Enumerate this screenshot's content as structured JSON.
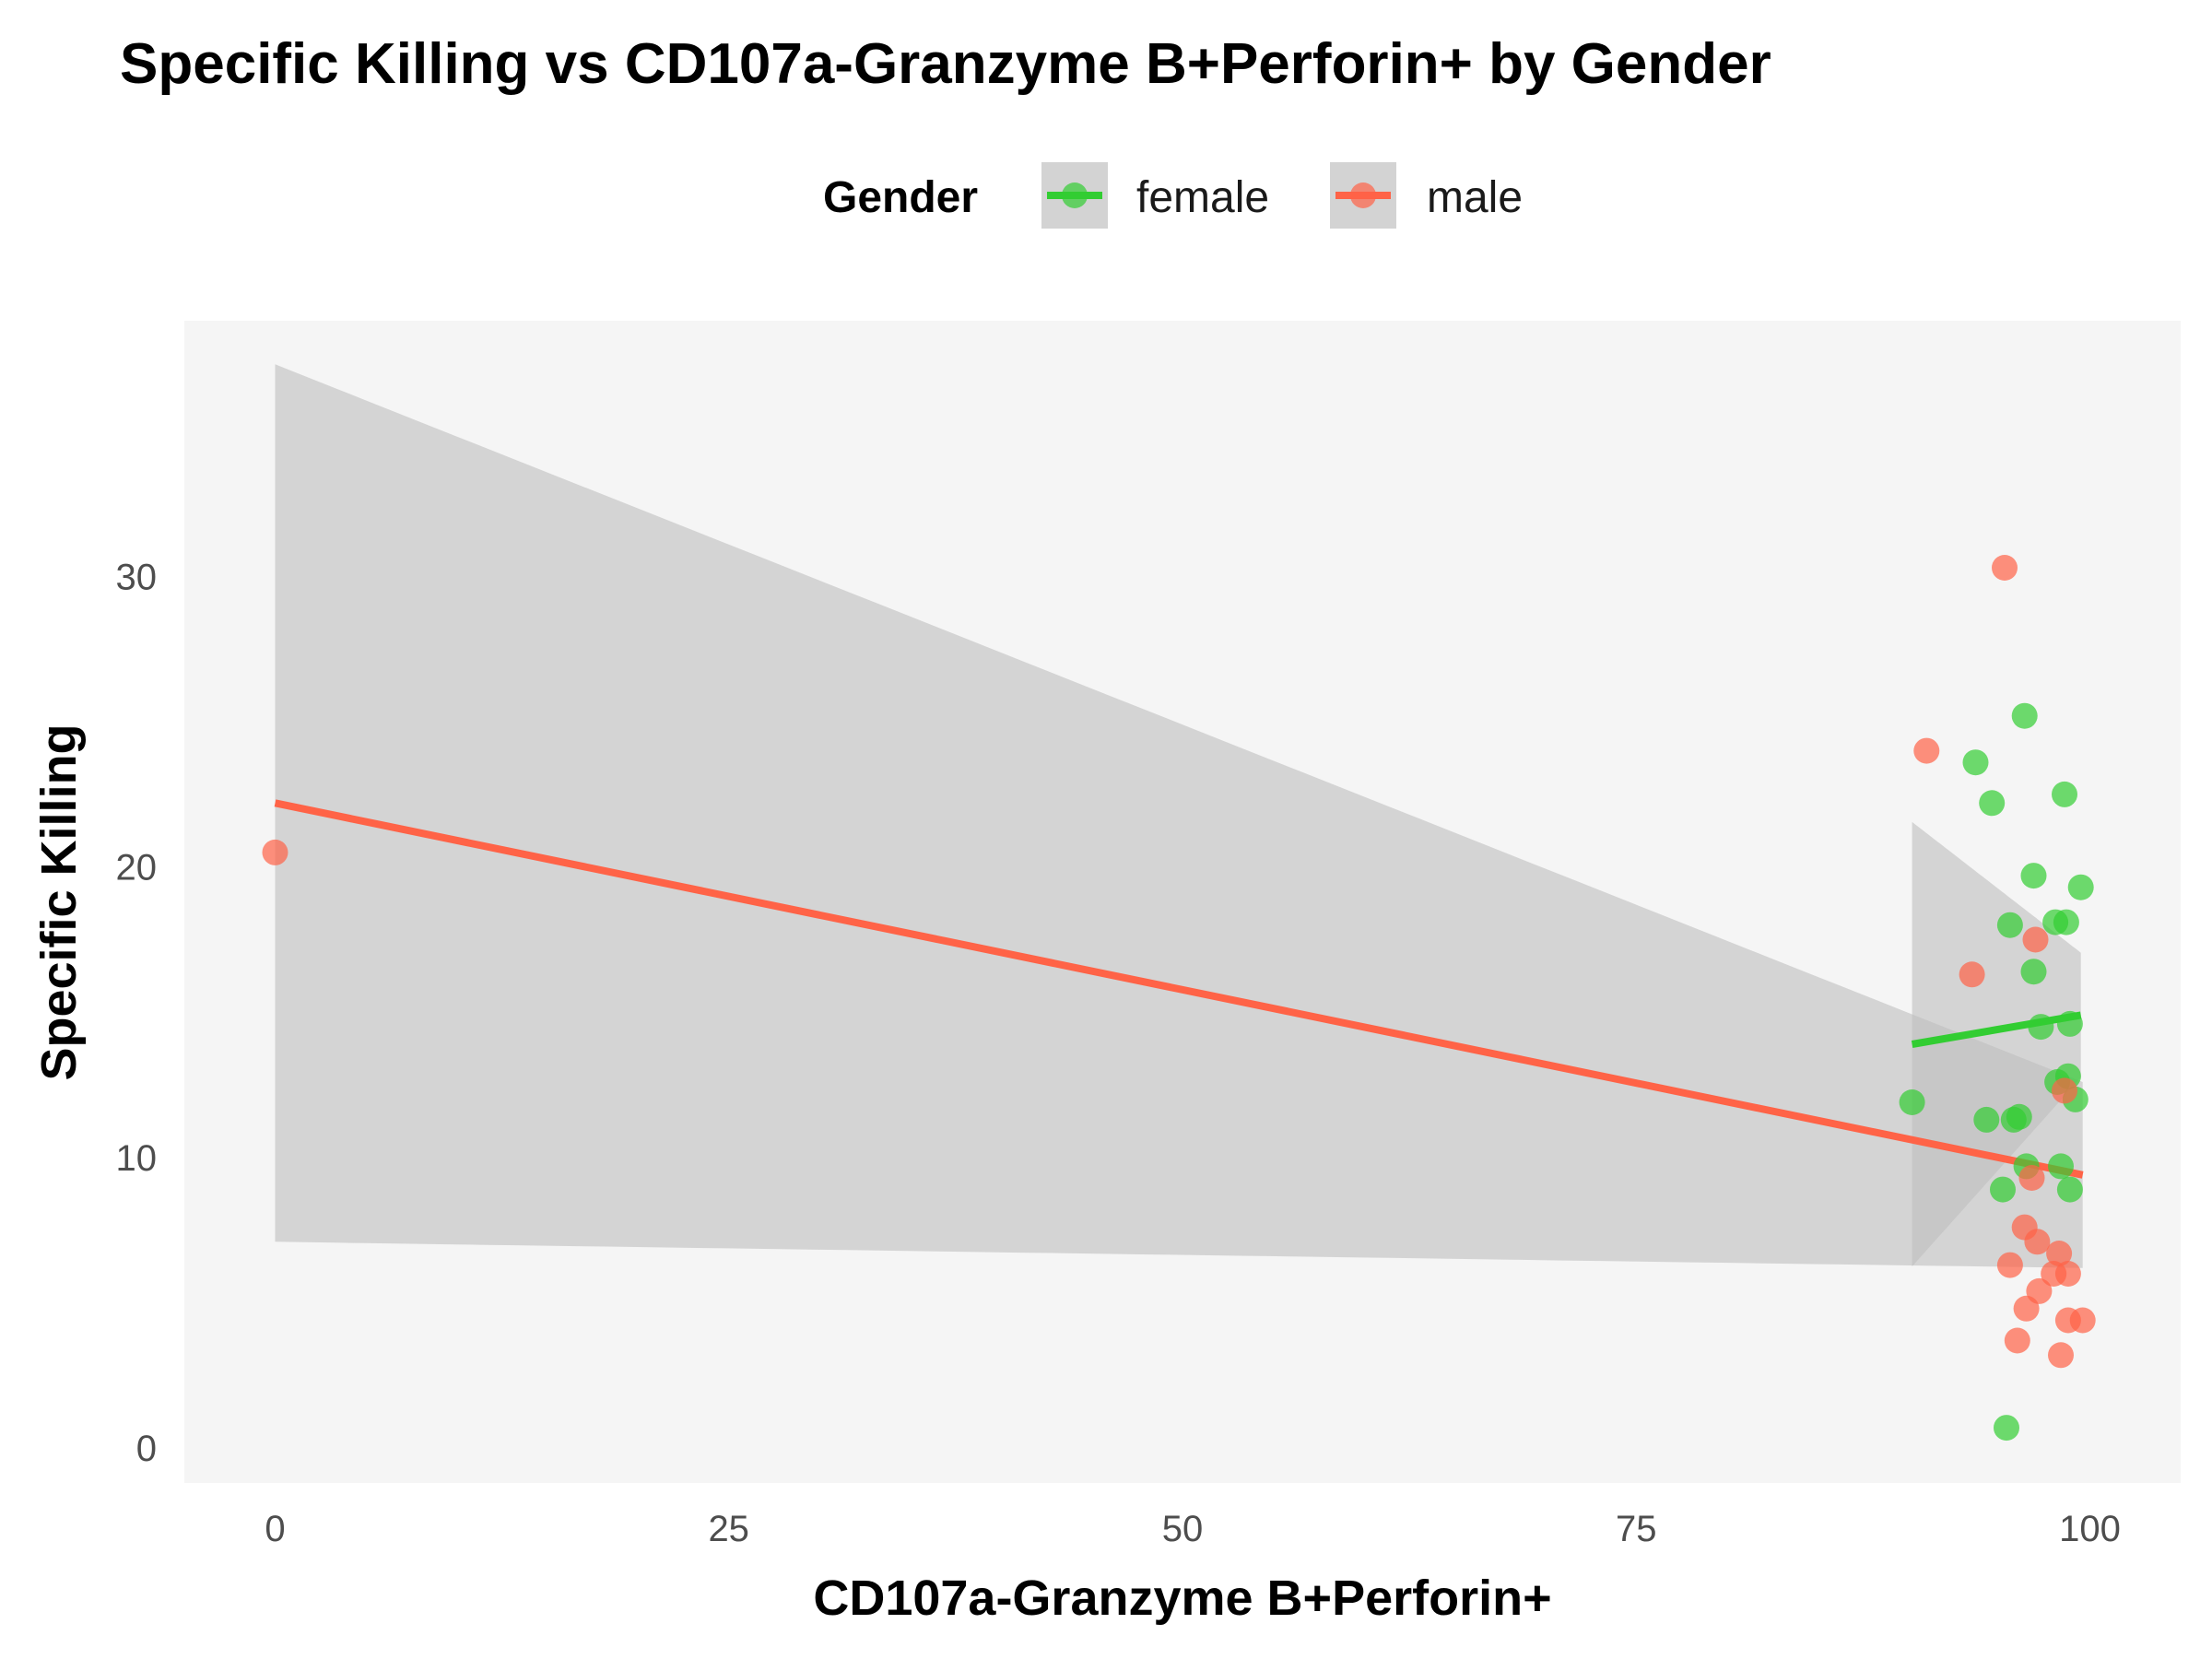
{
  "chart_data": {
    "type": "scatter",
    "title": "Specific Killing vs CD107a-Granzyme B+Perforin+ by Gender",
    "xlabel": "CD107a-Granzyme B+Perforin+",
    "ylabel": "Specific Killing",
    "xlim": [
      -5,
      105
    ],
    "ylim": [
      -1.2,
      38.8
    ],
    "x_ticks": [
      0,
      25,
      50,
      75,
      100
    ],
    "y_ticks": [
      0,
      10,
      20,
      30
    ],
    "grid": false,
    "legend": {
      "title": "Gender",
      "placement": "top"
    },
    "series": [
      {
        "name": "female",
        "color": "#32cd32",
        "points": [
          [
            90.2,
            11.9
          ],
          [
            93.7,
            23.6
          ],
          [
            94.3,
            11.3
          ],
          [
            94.6,
            22.2
          ],
          [
            95.2,
            8.9
          ],
          [
            95.4,
            0.7
          ],
          [
            95.6,
            18.0
          ],
          [
            95.8,
            11.3
          ],
          [
            96.1,
            11.4
          ],
          [
            96.4,
            25.2
          ],
          [
            96.5,
            9.7
          ],
          [
            96.9,
            19.7
          ],
          [
            96.9,
            16.4
          ],
          [
            97.3,
            14.5
          ],
          [
            98.1,
            18.1
          ],
          [
            98.2,
            12.6
          ],
          [
            98.4,
            9.7
          ],
          [
            98.6,
            22.5
          ],
          [
            98.7,
            18.1
          ],
          [
            98.8,
            12.8
          ],
          [
            98.9,
            14.6
          ],
          [
            98.9,
            8.9
          ],
          [
            99.2,
            12.0
          ],
          [
            99.5,
            19.3
          ]
        ],
        "fit": {
          "x": [
            90.2,
            99.5
          ],
          "y": [
            13.9,
            14.9
          ],
          "ci_lower": [
            6.2,
            12.7
          ],
          "ci_upper": [
            21.5,
            17.0
          ]
        }
      },
      {
        "name": "male",
        "color": "#ff6347",
        "points": [
          [
            0,
            20.5
          ],
          [
            91.0,
            24.0
          ],
          [
            93.5,
            16.3
          ],
          [
            95.3,
            30.3
          ],
          [
            95.6,
            6.3
          ],
          [
            96.0,
            3.7
          ],
          [
            96.4,
            7.6
          ],
          [
            96.5,
            4.8
          ],
          [
            96.8,
            9.3
          ],
          [
            97.0,
            17.5
          ],
          [
            97.1,
            7.1
          ],
          [
            97.2,
            5.4
          ],
          [
            98.0,
            6.0
          ],
          [
            98.3,
            6.7
          ],
          [
            98.4,
            3.2
          ],
          [
            98.6,
            12.3
          ],
          [
            98.8,
            6.0
          ],
          [
            98.8,
            4.4
          ],
          [
            99.6,
            4.4
          ]
        ],
        "fit": {
          "x": [
            0,
            99.6
          ],
          "y": [
            22.2,
            9.4
          ],
          "ci_lower": [
            7.1,
            6.2
          ],
          "ci_upper": [
            37.3,
            12.6
          ]
        }
      }
    ]
  }
}
